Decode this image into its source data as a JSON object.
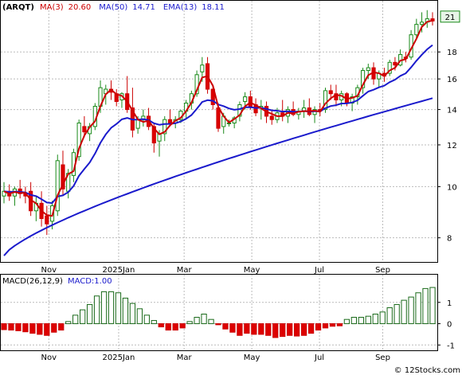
{
  "chart_data": {
    "type": "candlestick",
    "title": "(ARQT)",
    "price_panel": {
      "legend": [
        {
          "label": "MA(3)",
          "value": "20.60",
          "color": "#cc0000"
        },
        {
          "label": "MA(50)",
          "value": "14.71",
          "color": "#1a1acc"
        },
        {
          "label": "EMA(13)",
          "value": "18.11",
          "color": "#1a1acc"
        }
      ],
      "y_ticks": [
        8,
        10,
        12,
        14,
        16,
        18
      ],
      "ylim": [
        7.2,
        22.5
      ],
      "scale": "log",
      "last_price_label": "21",
      "candles": [
        [
          9.6,
          10.2,
          9.3,
          9.8
        ],
        [
          9.8,
          10.1,
          9.4,
          9.6
        ],
        [
          9.6,
          10.0,
          9.2,
          9.9
        ],
        [
          9.9,
          10.3,
          9.5,
          9.7
        ],
        [
          9.7,
          10.0,
          9.3,
          9.6
        ],
        [
          9.8,
          10.2,
          8.8,
          9.0
        ],
        [
          9.0,
          9.6,
          8.6,
          9.3
        ],
        [
          9.3,
          9.8,
          8.4,
          8.7
        ],
        [
          8.8,
          9.2,
          8.1,
          8.5
        ],
        [
          8.6,
          9.4,
          8.3,
          9.2
        ],
        [
          9.0,
          11.5,
          8.8,
          11.2
        ],
        [
          11.0,
          11.7,
          9.6,
          9.9
        ],
        [
          9.8,
          10.8,
          9.5,
          10.6
        ],
        [
          10.5,
          11.8,
          10.2,
          11.6
        ],
        [
          11.4,
          13.4,
          11.2,
          13.2
        ],
        [
          13.0,
          13.6,
          12.4,
          12.7
        ],
        [
          12.6,
          13.2,
          12.2,
          13.0
        ],
        [
          13.0,
          14.4,
          12.8,
          14.2
        ],
        [
          14.2,
          15.9,
          13.8,
          15.4
        ],
        [
          15.0,
          15.6,
          14.3,
          15.3
        ],
        [
          15.3,
          15.9,
          14.6,
          15.1
        ],
        [
          15.0,
          15.3,
          14.2,
          14.5
        ],
        [
          14.6,
          15.1,
          14.1,
          15.0
        ],
        [
          15.0,
          16.2,
          13.8,
          14.0
        ],
        [
          14.1,
          15.4,
          12.4,
          12.8
        ],
        [
          12.9,
          13.6,
          12.6,
          13.4
        ],
        [
          13.4,
          14.0,
          13.0,
          13.6
        ],
        [
          13.6,
          14.1,
          12.8,
          13.0
        ],
        [
          13.0,
          13.2,
          11.6,
          12.1
        ],
        [
          12.2,
          12.8,
          11.4,
          12.6
        ],
        [
          12.6,
          13.6,
          12.2,
          13.4
        ],
        [
          13.4,
          14.0,
          13.0,
          13.2
        ],
        [
          13.2,
          13.6,
          12.9,
          13.4
        ],
        [
          13.4,
          14.0,
          13.2,
          13.9
        ],
        [
          13.9,
          14.6,
          13.5,
          14.4
        ],
        [
          14.4,
          15.2,
          14.0,
          15.0
        ],
        [
          15.0,
          16.6,
          14.8,
          16.3
        ],
        [
          16.5,
          17.6,
          15.8,
          17.0
        ],
        [
          17.1,
          17.6,
          15.0,
          15.3
        ],
        [
          15.3,
          15.6,
          14.0,
          14.3
        ],
        [
          14.1,
          14.4,
          12.7,
          12.9
        ],
        [
          13.0,
          13.8,
          12.6,
          13.6
        ],
        [
          13.2,
          13.4,
          13.0,
          13.2
        ],
        [
          13.2,
          13.6,
          12.9,
          13.5
        ],
        [
          13.6,
          14.5,
          13.3,
          14.3
        ],
        [
          14.5,
          15.1,
          14.0,
          14.8
        ],
        [
          14.8,
          15.2,
          14.0,
          14.2
        ],
        [
          14.3,
          14.7,
          13.6,
          13.8
        ],
        [
          14.1,
          14.6,
          13.4,
          14.2
        ],
        [
          14.2,
          14.5,
          13.2,
          13.6
        ],
        [
          13.6,
          14.0,
          13.1,
          13.4
        ],
        [
          13.4,
          14.1,
          13.2,
          13.8
        ],
        [
          13.8,
          14.6,
          13.3,
          13.6
        ],
        [
          13.6,
          14.2,
          13.2,
          14.0
        ],
        [
          14.0,
          14.5,
          13.6,
          13.7
        ],
        [
          13.7,
          14.1,
          13.4,
          13.9
        ],
        [
          13.9,
          14.6,
          13.5,
          14.1
        ],
        [
          14.1,
          14.7,
          13.6,
          13.7
        ],
        [
          13.7,
          14.2,
          13.2,
          14.0
        ],
        [
          14.0,
          14.4,
          13.6,
          13.9
        ],
        [
          14.0,
          15.4,
          13.8,
          15.2
        ],
        [
          15.2,
          15.6,
          14.6,
          15.0
        ],
        [
          15.0,
          15.6,
          14.2,
          14.6
        ],
        [
          14.6,
          15.2,
          14.2,
          15.0
        ],
        [
          15.0,
          15.1,
          14.2,
          14.4
        ],
        [
          14.4,
          15.0,
          13.9,
          14.8
        ],
        [
          14.8,
          15.6,
          14.3,
          15.4
        ],
        [
          15.4,
          16.8,
          15.0,
          16.6
        ],
        [
          16.6,
          17.1,
          16.0,
          16.8
        ],
        [
          16.8,
          17.2,
          15.6,
          16.0
        ],
        [
          16.0,
          16.6,
          15.4,
          16.4
        ],
        [
          16.4,
          16.8,
          15.8,
          16.2
        ],
        [
          16.4,
          17.4,
          16.2,
          17.2
        ],
        [
          17.2,
          17.6,
          16.6,
          17.0
        ],
        [
          17.0,
          18.2,
          16.9,
          17.8
        ],
        [
          17.6,
          18.0,
          17.2,
          17.5
        ],
        [
          17.6,
          19.8,
          17.4,
          19.4
        ],
        [
          19.4,
          20.8,
          19.0,
          20.3
        ],
        [
          20.3,
          21.4,
          19.6,
          20.5
        ],
        [
          20.5,
          21.6,
          20.0,
          20.8
        ],
        [
          20.8,
          21.4,
          20.2,
          20.6
        ]
      ]
    },
    "macd_panel": {
      "legend": [
        {
          "label": "MACD(26,12,9)",
          "color": "#000000"
        },
        {
          "label": "MACD:1.00",
          "color": "#1a1acc"
        }
      ],
      "y_ticks": [
        -1,
        0,
        1
      ],
      "ylim": [
        -1.25,
        2.3
      ],
      "histogram": [
        -0.28,
        -0.3,
        -0.33,
        -0.38,
        -0.45,
        -0.5,
        -0.55,
        -0.4,
        -0.3,
        0.1,
        0.4,
        0.65,
        0.9,
        1.3,
        1.5,
        1.5,
        1.45,
        1.2,
        0.95,
        0.7,
        0.4,
        0.15,
        -0.15,
        -0.3,
        -0.3,
        -0.2,
        0.1,
        0.3,
        0.45,
        0.2,
        -0.05,
        -0.25,
        -0.4,
        -0.55,
        -0.45,
        -0.5,
        -0.5,
        -0.55,
        -0.65,
        -0.6,
        -0.55,
        -0.58,
        -0.55,
        -0.45,
        -0.3,
        -0.2,
        -0.12,
        -0.1,
        0.2,
        0.3,
        0.3,
        0.35,
        0.45,
        0.55,
        0.75,
        0.9,
        1.1,
        1.25,
        1.45,
        1.65,
        1.7
      ]
    },
    "x_tick_labels": [
      "Nov",
      "2025Jan",
      "Mar",
      "May",
      "Jul",
      "Sep"
    ],
    "watermark": "© 12Stocks.com"
  }
}
